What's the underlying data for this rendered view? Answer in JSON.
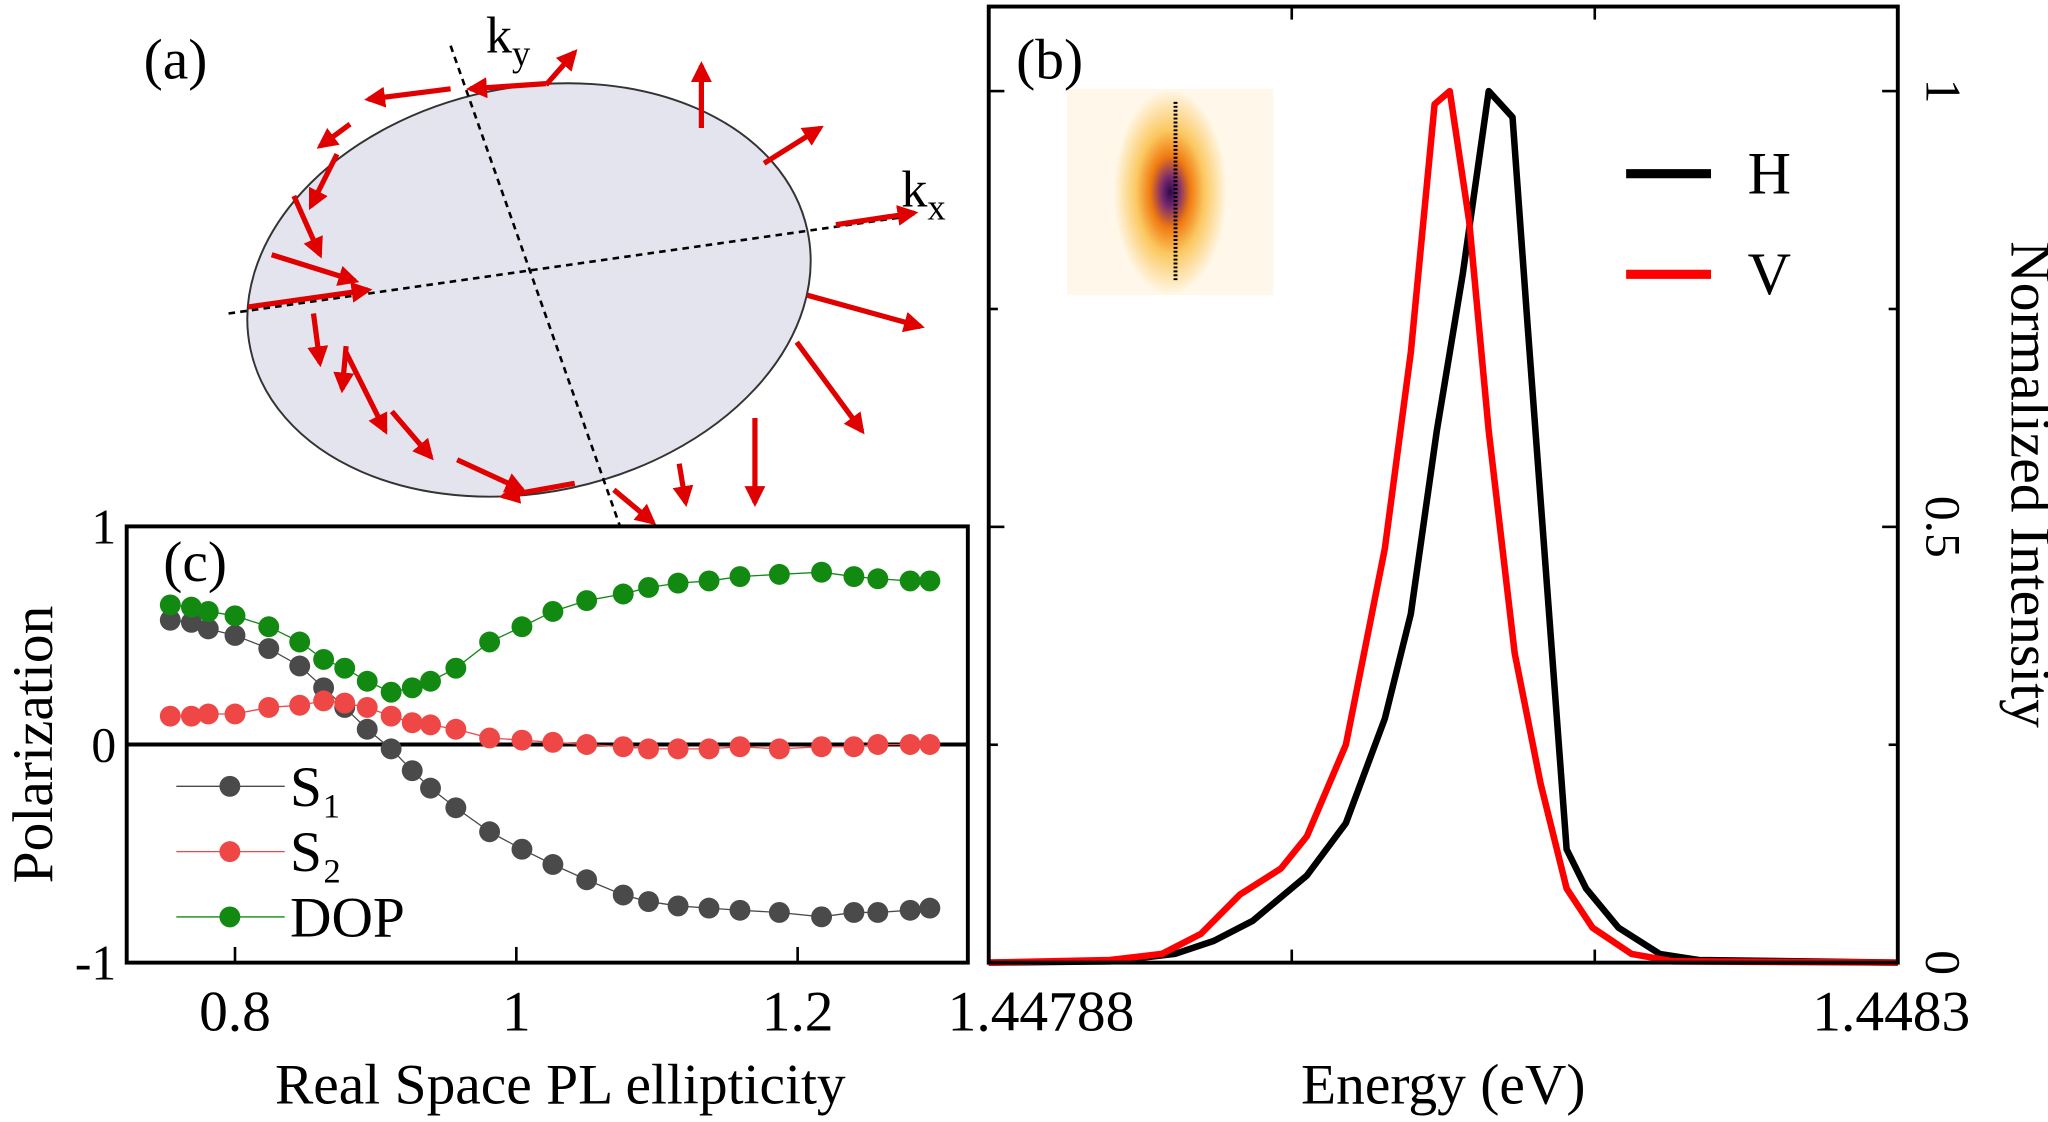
{
  "diagram": {
    "label": "(a)",
    "axes": [
      {
        "text": "k",
        "sub": "y"
      },
      {
        "text": "k",
        "sub": "x"
      }
    ]
  },
  "chart_data": [
    {
      "type": "line",
      "label": "(b)",
      "xlabel": "Energy (eV)",
      "ylabel": "Normalized Intensity",
      "xlim": [
        1.44788,
        1.4483
      ],
      "xticks": [
        1.44788,
        1.4483
      ],
      "xminorticks": [
        1.44802,
        1.44816
      ],
      "ylim": [
        0,
        1.097
      ],
      "yticks": [
        0,
        0.5,
        1
      ],
      "yminorticks": [
        0.25,
        0.75
      ],
      "yaxis_side": "right",
      "series": [
        {
          "name": "H",
          "color": "#000000",
          "x": [
            1.44788,
            1.447936,
            1.447966,
            1.447984,
            1.448002,
            1.448027,
            1.448045,
            1.448063,
            1.448075,
            1.448087,
            1.448099,
            1.448111,
            1.448122,
            1.448129,
            1.448138,
            1.448147,
            1.448156,
            1.448171,
            1.44819,
            1.448208,
            1.4483
          ],
          "values": [
            0,
            0.0015,
            0.01,
            0.025,
            0.048,
            0.1,
            0.16,
            0.28,
            0.4,
            0.61,
            0.79,
            1.0,
            0.97,
            0.73,
            0.43,
            0.13,
            0.085,
            0.04,
            0.01,
            0.003,
            0
          ]
        },
        {
          "name": "V",
          "color": "#ff0000",
          "x": [
            1.44788,
            1.447936,
            1.44796,
            1.447978,
            1.447996,
            1.448015,
            1.448027,
            1.448045,
            1.448063,
            1.448075,
            1.448086,
            1.448093,
            1.448102,
            1.448111,
            1.448123,
            1.448135,
            1.448147,
            1.448159,
            1.448177,
            1.448196,
            1.4483
          ],
          "values": [
            0,
            0.003,
            0.01,
            0.033,
            0.078,
            0.108,
            0.145,
            0.25,
            0.475,
            0.7,
            0.985,
            1.0,
            0.85,
            0.61,
            0.355,
            0.205,
            0.085,
            0.04,
            0.01,
            0.0015,
            0
          ]
        }
      ]
    },
    {
      "type": "line-scatter",
      "label": "(c)",
      "xlabel": "Real Space PL ellipticity",
      "ylabel": "Polarization",
      "xlim": [
        0.723,
        1.321
      ],
      "xticks": [
        0.8,
        1,
        1.2
      ],
      "ylim": [
        -1,
        1
      ],
      "yticks": [
        -1,
        0,
        1
      ],
      "zero_line": true,
      "x": [
        0.754,
        0.769,
        0.781,
        0.8,
        0.824,
        0.846,
        0.863,
        0.878,
        0.894,
        0.911,
        0.926,
        0.939,
        0.957,
        0.981,
        1.004,
        1.026,
        1.05,
        1.076,
        1.094,
        1.115,
        1.137,
        1.159,
        1.187,
        1.217,
        1.24,
        1.257,
        1.28,
        1.294
      ],
      "series": [
        {
          "name": "S₁",
          "color": "#4a4a4a",
          "values": [
            0.57,
            0.56,
            0.53,
            0.5,
            0.44,
            0.36,
            0.26,
            0.17,
            0.07,
            -0.02,
            -0.12,
            -0.2,
            -0.29,
            -0.4,
            -0.48,
            -0.55,
            -0.62,
            -0.69,
            -0.72,
            -0.74,
            -0.75,
            -0.76,
            -0.77,
            -0.79,
            -0.77,
            -0.77,
            -0.76,
            -0.75
          ]
        },
        {
          "name": "S₂",
          "color": "#ef4646",
          "values": [
            0.13,
            0.13,
            0.14,
            0.14,
            0.17,
            0.18,
            0.2,
            0.19,
            0.17,
            0.13,
            0.1,
            0.09,
            0.07,
            0.03,
            0.02,
            0.01,
            0,
            -0.01,
            -0.02,
            -0.02,
            -0.02,
            -0.01,
            -0.02,
            -0.01,
            -0.01,
            0,
            0,
            0
          ]
        },
        {
          "name": "DOP",
          "color": "#128a12",
          "values": [
            0.64,
            0.63,
            0.61,
            0.59,
            0.54,
            0.47,
            0.39,
            0.35,
            0.29,
            0.24,
            0.26,
            0.29,
            0.35,
            0.47,
            0.54,
            0.61,
            0.66,
            0.69,
            0.72,
            0.74,
            0.75,
            0.77,
            0.78,
            0.79,
            0.77,
            0.76,
            0.75,
            0.75
          ]
        }
      ]
    }
  ]
}
